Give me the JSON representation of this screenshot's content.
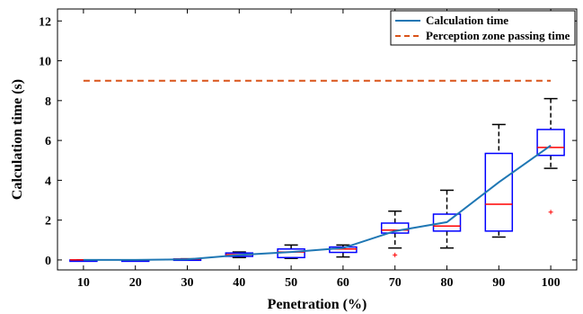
{
  "chart_data": {
    "type": "box",
    "xlabel": "Penetration (%)",
    "ylabel": "Calculation time (s)",
    "x_ticks": [
      "10",
      "20",
      "30",
      "40",
      "50",
      "60",
      "70",
      "80",
      "90",
      "100"
    ],
    "y_ticks": [
      "0",
      "2",
      "4",
      "6",
      "8",
      "10",
      "12"
    ],
    "xlim": [
      5,
      105
    ],
    "ylim": [
      -0.5,
      12.6
    ],
    "grid": false,
    "legend_position": "top-right",
    "colors": {
      "line": "#1f77b4",
      "threshold": "#d95319",
      "box": "#0000ff",
      "median": "#ff0000",
      "whisker": "#000000",
      "outlier": "#ff0000"
    },
    "series": [
      {
        "name": "Calculation time",
        "kind": "line",
        "x": [
          10,
          20,
          30,
          40,
          50,
          60,
          70,
          80,
          90,
          100
        ],
        "values": [
          0.0,
          0.0,
          0.03,
          0.25,
          0.4,
          0.6,
          1.45,
          1.9,
          3.9,
          5.75
        ]
      },
      {
        "name": "Perception zone passing time",
        "kind": "dashed-line",
        "x": [
          10,
          100
        ],
        "values": [
          9.0,
          9.0
        ]
      }
    ],
    "boxes": [
      {
        "x": 10,
        "whisker_low": 0.0,
        "q1": 0.0,
        "median": 0.0,
        "q3": 0.0,
        "whisker_high": 0.0,
        "outliers": []
      },
      {
        "x": 20,
        "whisker_low": 0.0,
        "q1": 0.0,
        "median": 0.0,
        "q3": 0.0,
        "whisker_high": 0.0,
        "outliers": []
      },
      {
        "x": 30,
        "whisker_low": 0.02,
        "q1": 0.03,
        "median": 0.04,
        "q3": 0.05,
        "whisker_high": 0.06,
        "outliers": []
      },
      {
        "x": 40,
        "whisker_low": 0.12,
        "q1": 0.18,
        "median": 0.27,
        "q3": 0.35,
        "whisker_high": 0.4,
        "outliers": []
      },
      {
        "x": 50,
        "whisker_low": 0.08,
        "q1": 0.12,
        "median": 0.4,
        "q3": 0.55,
        "whisker_high": 0.75,
        "outliers": []
      },
      {
        "x": 60,
        "whisker_low": 0.15,
        "q1": 0.38,
        "median": 0.55,
        "q3": 0.65,
        "whisker_high": 0.75,
        "outliers": []
      },
      {
        "x": 70,
        "whisker_low": 0.6,
        "q1": 1.35,
        "median": 1.5,
        "q3": 1.85,
        "whisker_high": 2.45,
        "outliers": [
          0.25
        ]
      },
      {
        "x": 80,
        "whisker_low": 0.6,
        "q1": 1.45,
        "median": 1.7,
        "q3": 2.3,
        "whisker_high": 3.5,
        "outliers": []
      },
      {
        "x": 90,
        "whisker_low": 1.15,
        "q1": 1.45,
        "median": 2.8,
        "q3": 5.35,
        "whisker_high": 6.8,
        "outliers": []
      },
      {
        "x": 100,
        "whisker_low": 4.6,
        "q1": 5.25,
        "median": 5.65,
        "q3": 6.55,
        "whisker_high": 8.1,
        "outliers": [
          2.4
        ]
      }
    ]
  }
}
